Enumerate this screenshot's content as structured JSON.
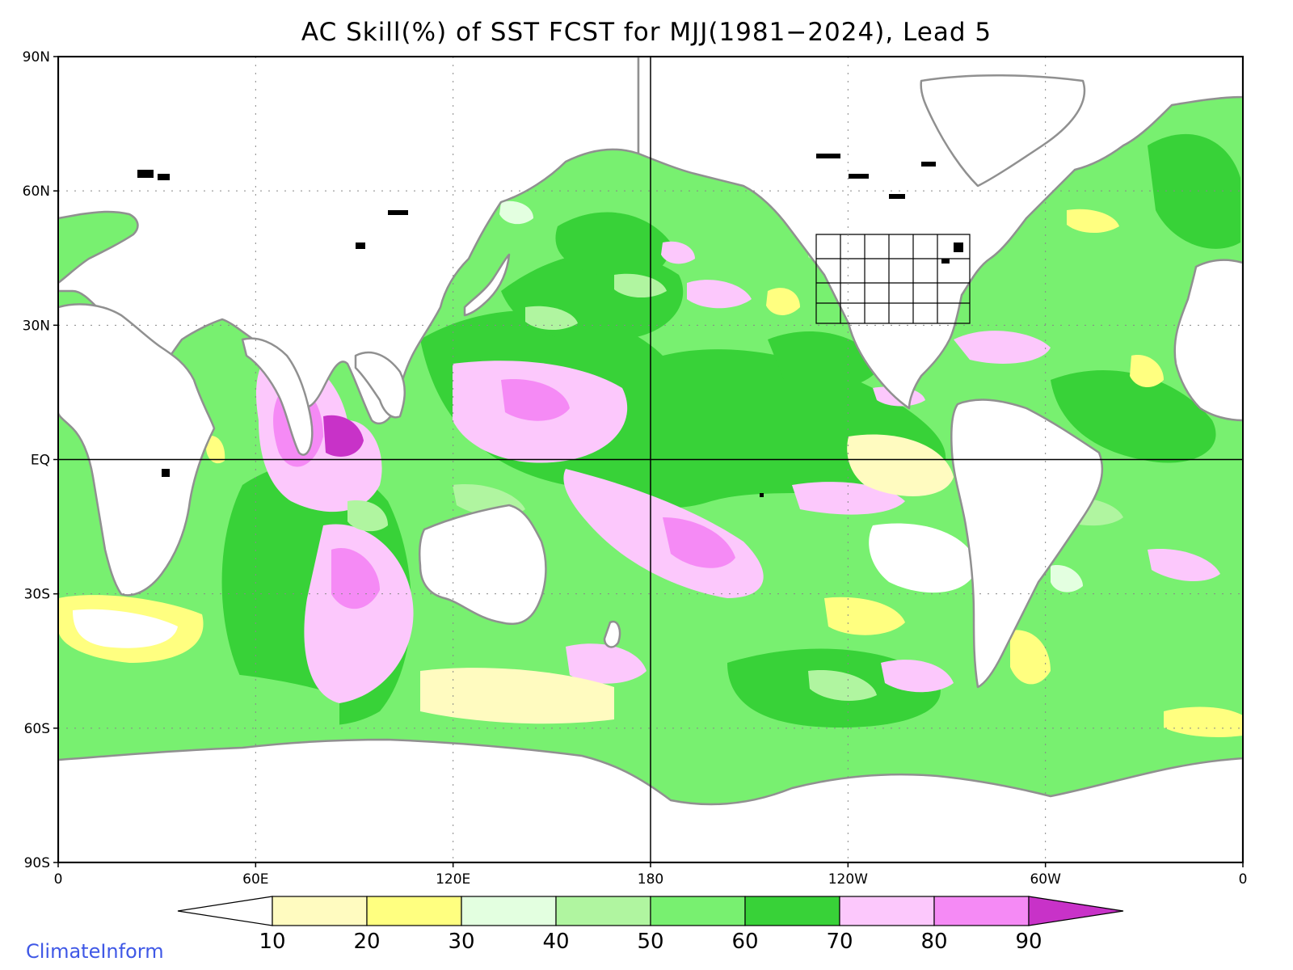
{
  "title": "AC Skill(%) of SST FCST for MJJ(1981−2024), Lead 5",
  "credit": "ClimateInform",
  "map": {
    "projection": "equirectangular",
    "lon_range": [
      0,
      360
    ],
    "lat_range": [
      -90,
      90
    ],
    "lat_ticks": [
      {
        "value": 90,
        "label": "90N"
      },
      {
        "value": 60,
        "label": "60N"
      },
      {
        "value": 30,
        "label": "30N"
      },
      {
        "value": 0,
        "label": "EQ"
      },
      {
        "value": -30,
        "label": "30S"
      },
      {
        "value": -60,
        "label": "60S"
      },
      {
        "value": -90,
        "label": "90S"
      }
    ],
    "lon_ticks": [
      {
        "value": 0,
        "label": "0"
      },
      {
        "value": 60,
        "label": "60E"
      },
      {
        "value": 120,
        "label": "120E"
      },
      {
        "value": 180,
        "label": "180"
      },
      {
        "value": 240,
        "label": "120W"
      },
      {
        "value": 300,
        "label": "60W"
      },
      {
        "value": 360,
        "label": "0"
      }
    ],
    "gridlines": "dotted",
    "reference_lines": [
      "equator",
      "180"
    ]
  },
  "colorbar": {
    "levels": [
      "10",
      "20",
      "30",
      "40",
      "50",
      "60",
      "70",
      "80",
      "90"
    ],
    "colors": [
      "#ffffff",
      "#fffbc0",
      "#ffff80",
      "#e3ffe0",
      "#b0f5a0",
      "#78f070",
      "#38d238",
      "#fcc8fc",
      "#f58af5",
      "#c832c8"
    ]
  },
  "colors": {
    "land": "#ffffff",
    "coastline": "#909090",
    "lakes": "#000000",
    "frame": "#000000"
  }
}
